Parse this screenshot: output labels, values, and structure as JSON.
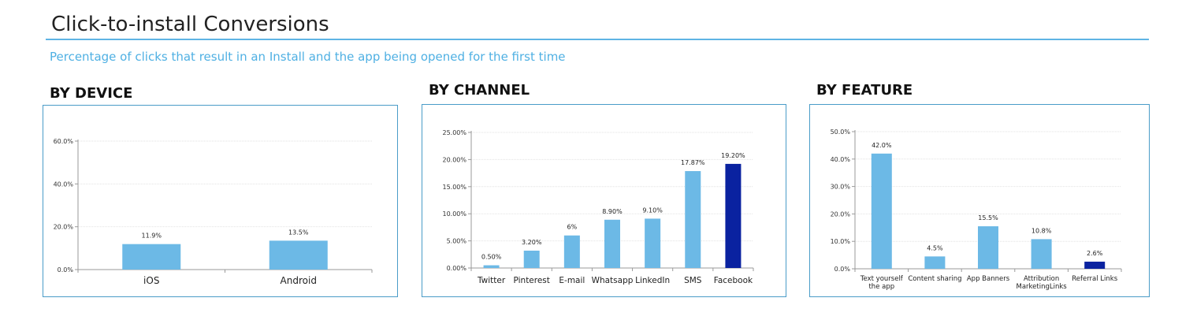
{
  "header": {
    "title": "Click-to-install Conversions",
    "subtitle": "Percentage of clicks that result in an Install and the app being opened for the first time"
  },
  "colors": {
    "accent": "#5fb4e4",
    "bar": "#6cb9e6",
    "bar_highlight": "#0a22a0",
    "panel_border": "#4a9cc8"
  },
  "chart_data": [
    {
      "id": "device",
      "type": "bar",
      "title": "BY DEVICE",
      "categories": [
        "iOS",
        "Android"
      ],
      "values": [
        11.9,
        13.5
      ],
      "value_labels": [
        "11.9%",
        "13.5%"
      ],
      "highlight": [],
      "yticks": [
        0,
        20,
        40,
        60
      ],
      "ytick_labels": [
        "0.0%",
        "20.0%",
        "40.0%",
        "60.0%"
      ],
      "ylim": [
        0,
        60
      ],
      "grid": true
    },
    {
      "id": "channel",
      "type": "bar",
      "title": "BY CHANNEL",
      "categories": [
        "Twitter",
        "Pinterest",
        "E-mail",
        "Whatsapp",
        "LinkedIn",
        "SMS",
        "Facebook"
      ],
      "values": [
        0.5,
        3.2,
        6,
        8.9,
        9.1,
        17.87,
        19.2
      ],
      "value_labels": [
        "0.50%",
        "3.20%",
        "6%",
        "8.90%",
        "9.10%",
        "17.87%",
        "19.20%"
      ],
      "highlight": [
        6
      ],
      "yticks": [
        0,
        5,
        10,
        15,
        20,
        25
      ],
      "ytick_labels": [
        "0.00%",
        "5.00%",
        "10.00%",
        "15.00%",
        "20.00%",
        "25.00%"
      ],
      "ylim": [
        0,
        25
      ],
      "grid": true
    },
    {
      "id": "feature",
      "type": "bar",
      "title": "BY FEATURE",
      "categories": [
        [
          "Text yourself",
          "the app"
        ],
        [
          "Content sharing"
        ],
        [
          "App Banners"
        ],
        [
          "Attribution",
          "MarketingLinks"
        ],
        [
          "Referral Links"
        ]
      ],
      "values": [
        42.0,
        4.5,
        15.5,
        10.8,
        2.6
      ],
      "value_labels": [
        "42.0%",
        "4.5%",
        "15.5%",
        "10.8%",
        "2.6%"
      ],
      "highlight": [
        4
      ],
      "yticks": [
        0,
        10,
        20,
        30,
        40,
        50
      ],
      "ytick_labels": [
        "0.0%",
        "10.0%",
        "20.0%",
        "30.0%",
        "40.0%",
        "50.0%"
      ],
      "ylim": [
        0,
        50
      ],
      "grid": true
    }
  ]
}
